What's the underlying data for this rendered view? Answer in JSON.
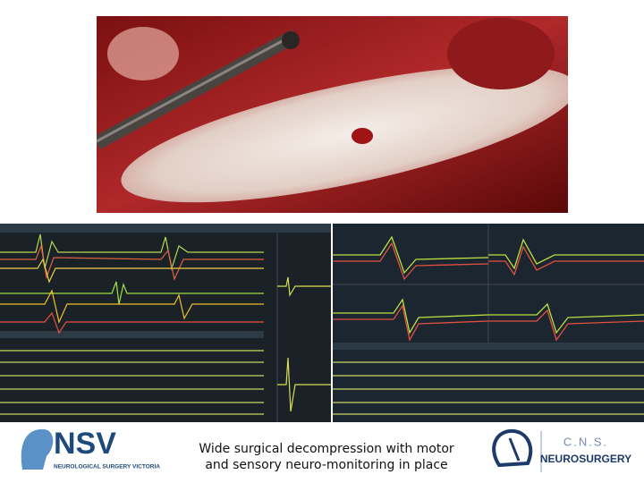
{
  "caption": {
    "lines": [
      "Wide surgical decompression with motor",
      "and sensory neuro-monitoring in place"
    ]
  },
  "logos": {
    "left": {
      "name": "NSV",
      "subtitle": "NEUROLOGICAL SURGERY VICTORIA"
    },
    "right": {
      "name": "C.N.S.",
      "subtitle": "NEUROSURGERY"
    }
  }
}
